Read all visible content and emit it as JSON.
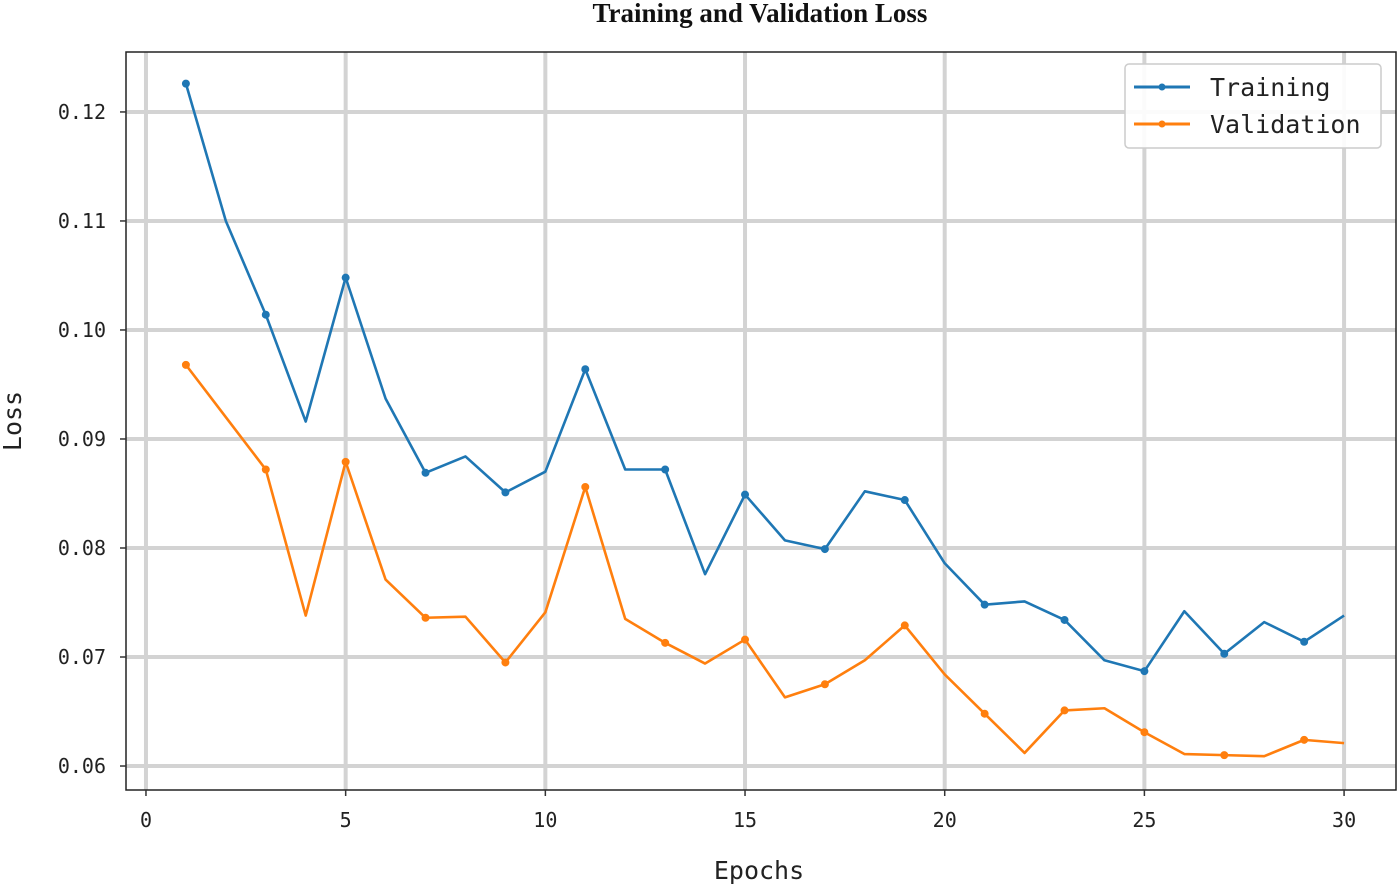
{
  "chart_data": {
    "type": "line",
    "title": "Training and Validation Loss",
    "xlabel": "Epochs",
    "ylabel": "Loss",
    "xlim": [
      -0.5,
      31.3
    ],
    "ylim": [
      0.0578,
      0.1255
    ],
    "xticks": [
      0,
      5,
      10,
      15,
      20,
      25,
      30
    ],
    "xtick_labels": [
      "0",
      "5",
      "10",
      "15",
      "20",
      "25",
      "30"
    ],
    "yticks": [
      0.06,
      0.07,
      0.08,
      0.09,
      0.1,
      0.11,
      0.12
    ],
    "ytick_labels": [
      "0.06",
      "0.07",
      "0.08",
      "0.09",
      "0.10",
      "0.11",
      "0.12"
    ],
    "grid": true,
    "legend_position": "top-right",
    "x": [
      1,
      2,
      3,
      4,
      5,
      6,
      7,
      8,
      9,
      10,
      11,
      12,
      13,
      14,
      15,
      16,
      17,
      18,
      19,
      20,
      21,
      22,
      23,
      24,
      25,
      26,
      27,
      28,
      29,
      30
    ],
    "series": [
      {
        "name": "Training",
        "color": "#1f77b4",
        "values": [
          0.1226,
          0.11,
          0.1014,
          0.0916,
          0.1048,
          0.0937,
          0.0869,
          0.0884,
          0.0851,
          0.087,
          0.0964,
          0.0872,
          0.0872,
          0.0776,
          0.0849,
          0.0807,
          0.0799,
          0.0852,
          0.0844,
          0.0786,
          0.0748,
          0.0751,
          0.0734,
          0.0697,
          0.0687,
          0.0742,
          0.0703,
          0.0732,
          0.0714,
          0.0738
        ]
      },
      {
        "name": "Validation",
        "color": "#ff7f0e",
        "values": [
          0.0968,
          0.092,
          0.0872,
          0.0738,
          0.0879,
          0.0771,
          0.0736,
          0.0737,
          0.0695,
          0.0741,
          0.0856,
          0.0735,
          0.0713,
          0.0694,
          0.0716,
          0.0663,
          0.0675,
          0.0697,
          0.0729,
          0.0684,
          0.0648,
          0.0612,
          0.0651,
          0.0653,
          0.0631,
          0.0611,
          0.061,
          0.0609,
          0.0624,
          0.0621
        ]
      }
    ]
  }
}
